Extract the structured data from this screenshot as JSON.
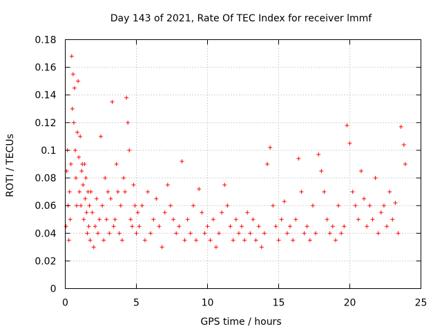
{
  "chart_data": {
    "type": "scatter",
    "title": "Day 143 of 2021, Rate Of TEC Index for receiver lmmf",
    "xlabel": "GPS time / hours",
    "ylabel": "ROTI / TECUs",
    "xlim": [
      0,
      25
    ],
    "ylim": [
      0,
      0.18
    ],
    "x_ticks": [
      0,
      5,
      10,
      15,
      20,
      25
    ],
    "x_tick_labels": [
      "0",
      "5",
      "10",
      "15",
      "20",
      "25"
    ],
    "y_ticks": [
      0,
      0.02,
      0.04,
      0.06,
      0.08,
      0.1,
      0.12,
      0.14,
      0.16,
      0.18
    ],
    "y_tick_labels": [
      "0",
      "0.02",
      "0.04",
      "0.06",
      "0.08",
      "0.1",
      "0.12",
      "0.14",
      "0.16",
      "0.18"
    ],
    "grid": true,
    "marker": "+",
    "series": [
      {
        "name": "ROTI",
        "color": "#ff0000",
        "x": [
          0.05,
          0.1,
          0.15,
          0.2,
          0.25,
          0.3,
          0.35,
          0.4,
          0.45,
          0.5,
          0.55,
          0.6,
          0.65,
          0.7,
          0.75,
          0.8,
          0.85,
          0.9,
          0.95,
          1.0,
          1.05,
          1.1,
          1.15,
          1.2,
          1.25,
          1.3,
          1.35,
          1.4,
          1.45,
          1.5,
          1.55,
          1.6,
          1.65,
          1.7,
          1.75,
          1.8,
          1.9,
          2.0,
          2.1,
          2.2,
          2.3,
          2.4,
          2.5,
          2.6,
          2.7,
          2.8,
          2.9,
          3.0,
          3.1,
          3.2,
          3.3,
          3.4,
          3.5,
          3.6,
          3.7,
          3.8,
          3.9,
          4.0,
          4.1,
          4.2,
          4.3,
          4.4,
          4.5,
          4.6,
          4.7,
          4.8,
          4.9,
          5.0,
          5.1,
          5.2,
          5.4,
          5.6,
          5.8,
          6.0,
          6.2,
          6.4,
          6.6,
          6.8,
          7.0,
          7.2,
          7.4,
          7.6,
          7.8,
          8.0,
          8.2,
          8.4,
          8.6,
          8.8,
          9.0,
          9.2,
          9.4,
          9.6,
          9.8,
          10.0,
          10.2,
          10.4,
          10.6,
          10.8,
          11.0,
          11.2,
          11.4,
          11.6,
          11.8,
          12.0,
          12.2,
          12.4,
          12.6,
          12.8,
          13.0,
          13.2,
          13.4,
          13.6,
          13.8,
          14.0,
          14.2,
          14.4,
          14.6,
          14.8,
          15.0,
          15.2,
          15.4,
          15.6,
          15.8,
          16.0,
          16.2,
          16.4,
          16.6,
          16.8,
          17.0,
          17.2,
          17.4,
          17.6,
          17.8,
          18.0,
          18.2,
          18.4,
          18.6,
          18.8,
          19.0,
          19.2,
          19.4,
          19.6,
          19.8,
          20.0,
          20.2,
          20.4,
          20.6,
          20.8,
          21.0,
          21.2,
          21.4,
          21.6,
          21.8,
          22.0,
          22.2,
          22.4,
          22.6,
          22.8,
          23.0,
          23.2,
          23.4,
          23.6,
          23.8,
          23.9
        ],
        "y": [
          0.045,
          0.085,
          0.1,
          0.06,
          0.035,
          0.07,
          0.05,
          0.09,
          0.168,
          0.13,
          0.155,
          0.12,
          0.145,
          0.1,
          0.08,
          0.06,
          0.113,
          0.15,
          0.095,
          0.07,
          0.11,
          0.06,
          0.085,
          0.09,
          0.075,
          0.05,
          0.09,
          0.065,
          0.08,
          0.055,
          0.04,
          0.07,
          0.045,
          0.06,
          0.035,
          0.07,
          0.055,
          0.03,
          0.045,
          0.065,
          0.04,
          0.05,
          0.11,
          0.06,
          0.035,
          0.08,
          0.05,
          0.07,
          0.04,
          0.065,
          0.135,
          0.045,
          0.05,
          0.09,
          0.07,
          0.04,
          0.06,
          0.035,
          0.08,
          0.07,
          0.138,
          0.12,
          0.1,
          0.05,
          0.045,
          0.075,
          0.06,
          0.04,
          0.055,
          0.045,
          0.06,
          0.035,
          0.07,
          0.04,
          0.05,
          0.065,
          0.045,
          0.03,
          0.055,
          0.075,
          0.06,
          0.05,
          0.04,
          0.045,
          0.092,
          0.035,
          0.05,
          0.04,
          0.06,
          0.035,
          0.072,
          0.055,
          0.04,
          0.045,
          0.035,
          0.05,
          0.03,
          0.04,
          0.055,
          0.075,
          0.06,
          0.045,
          0.035,
          0.05,
          0.04,
          0.045,
          0.035,
          0.055,
          0.04,
          0.05,
          0.035,
          0.045,
          0.03,
          0.04,
          0.09,
          0.102,
          0.06,
          0.045,
          0.035,
          0.05,
          0.063,
          0.04,
          0.045,
          0.035,
          0.05,
          0.094,
          0.07,
          0.04,
          0.045,
          0.035,
          0.06,
          0.04,
          0.097,
          0.085,
          0.07,
          0.05,
          0.04,
          0.045,
          0.035,
          0.06,
          0.04,
          0.045,
          0.118,
          0.105,
          0.07,
          0.06,
          0.05,
          0.085,
          0.065,
          0.045,
          0.06,
          0.05,
          0.08,
          0.04,
          0.055,
          0.06,
          0.045,
          0.07,
          0.05,
          0.062,
          0.04,
          0.117,
          0.104,
          0.09
        ]
      }
    ]
  }
}
